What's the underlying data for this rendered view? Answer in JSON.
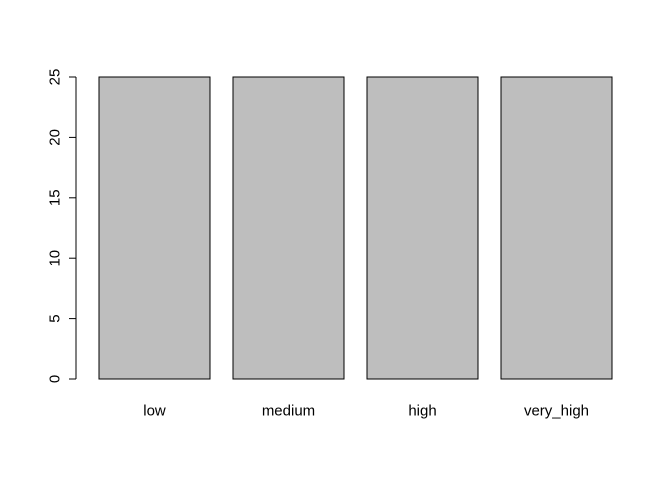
{
  "chart_data": {
    "type": "bar",
    "categories": [
      "low",
      "medium",
      "high",
      "very_high"
    ],
    "values": [
      25,
      25,
      25,
      25
    ],
    "title": "",
    "xlabel": "",
    "ylabel": "",
    "ylim": [
      0,
      25
    ],
    "yticks": [
      0,
      5,
      10,
      15,
      20,
      25
    ],
    "grid": false,
    "bar_color": "#bebebe",
    "border_color": "#000000"
  }
}
